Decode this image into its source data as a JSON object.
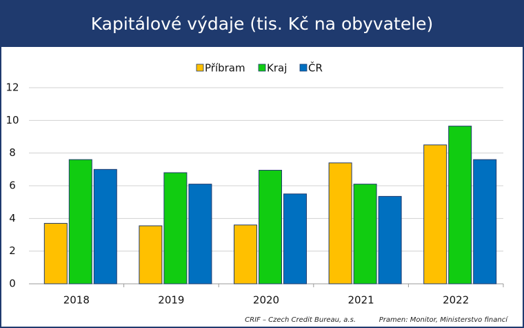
{
  "chart_data": {
    "type": "bar",
    "title": "Kapitálové výdaje (tis. Kč na obyvatele)",
    "categories": [
      "2018",
      "2019",
      "2020",
      "2021",
      "2022"
    ],
    "series": [
      {
        "name": "Příbram",
        "color": "#ffc000",
        "values": [
          3.7,
          3.55,
          3.6,
          7.4,
          8.5
        ]
      },
      {
        "name": "Kraj",
        "color": "#11cc11",
        "values": [
          7.6,
          6.8,
          6.95,
          6.1,
          9.65
        ]
      },
      {
        "name": "ČR",
        "color": "#0070c0",
        "values": [
          7.0,
          6.1,
          5.5,
          5.35,
          7.6
        ]
      }
    ],
    "ylim": [
      0,
      12
    ],
    "yticks": [
      0,
      2,
      4,
      6,
      8,
      10,
      12
    ],
    "grid": true,
    "legend": "top",
    "source": [
      "CRIF – Czech Credit Bureau, a.s.",
      "Pramen: Monitor, Ministerstvo financí"
    ]
  }
}
